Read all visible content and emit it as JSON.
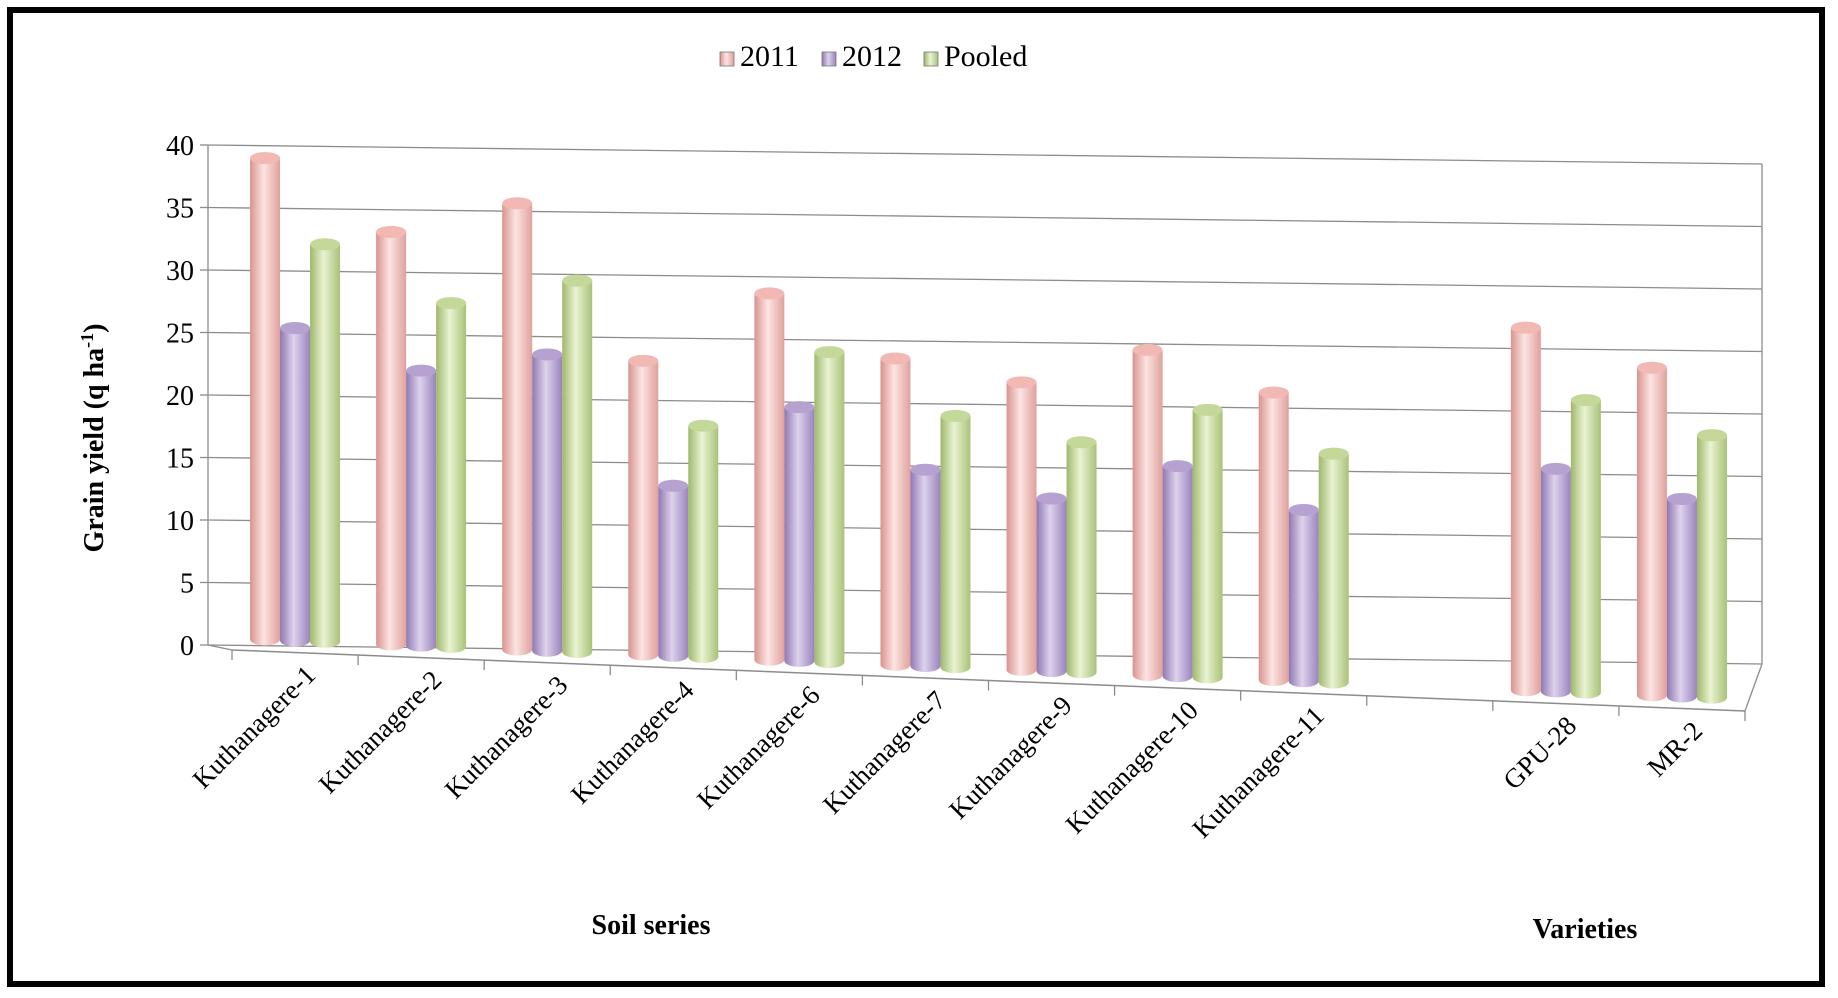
{
  "chart_data": {
    "type": "bar",
    "title": "",
    "ylabel": "Grain yield (q ha",
    "ylabel_sup": "-1",
    "ylabel_close": ")",
    "ylim": [
      0,
      40
    ],
    "yticks": [
      0,
      5,
      10,
      15,
      20,
      25,
      30,
      35,
      40
    ],
    "categories": [
      "Kuthanagere-1",
      "Kuthanagere-2",
      "Kuthanagere-3",
      "Kuthanagere-4",
      "Kuthanagere-6",
      "Kuthanagere-7",
      "Kuthanagere-9",
      "Kuthanagere-10",
      "Kuthanagere-11",
      "",
      "GPU-28",
      "MR-2"
    ],
    "group_labels": [
      {
        "text": "Soil series",
        "under": [
          0,
          8
        ]
      },
      {
        "text": "Varieties",
        "under": [
          10,
          11
        ]
      }
    ],
    "series": [
      {
        "name": "2011",
        "color": "#f2b8b4",
        "values": [
          38.5,
          33,
          35.7,
          23.5,
          29.3,
          24.5,
          23,
          26,
          23,
          null,
          29,
          26.2
        ]
      },
      {
        "name": "2012",
        "color": "#b6a2d0",
        "values": [
          25,
          22,
          23.7,
          13.6,
          20.3,
          15.7,
          13.8,
          16.8,
          13.7,
          null,
          17.8,
          15.8
        ]
      },
      {
        "name": "Pooled",
        "color": "#c4d89a",
        "values": [
          31.8,
          27.5,
          29.7,
          18.5,
          24.8,
          20.1,
          18.4,
          21.4,
          18.3,
          null,
          23.4,
          21
        ]
      }
    ],
    "legend_position": "top-center",
    "grid": true
  }
}
